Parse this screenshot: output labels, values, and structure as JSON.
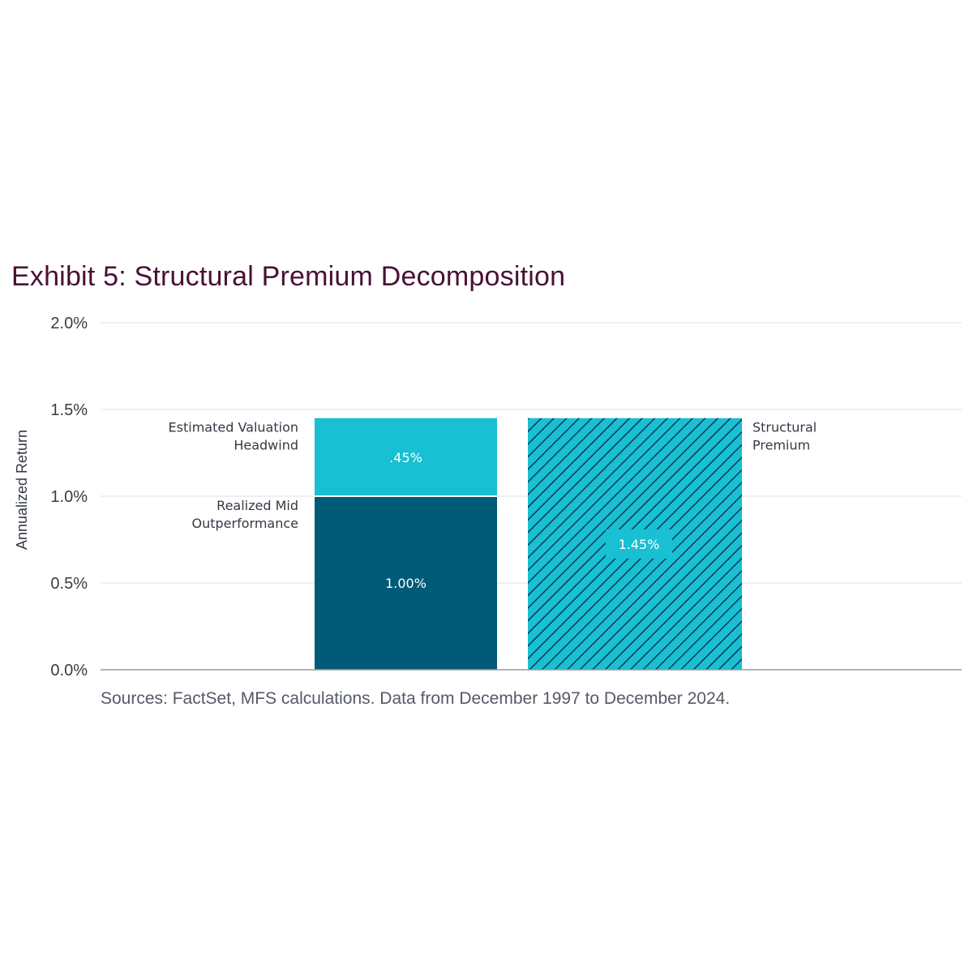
{
  "title": "Exhibit 5: Structural Premium Decomposition",
  "source": "Sources: FactSet, MFS calculations. Data from December 1997 to December 2024.",
  "colors": {
    "title": "#4a1035",
    "realized": "#005a78",
    "headwind": "#19bfd3",
    "premium": "#19bfd3",
    "hatch": "#0b3a4a",
    "grid": "#e2e2e2",
    "axis": "#9a9a9a"
  },
  "chart_data": {
    "type": "bar",
    "ylabel": "Annualized Return",
    "ylim": [
      0,
      2.0
    ],
    "yticks": [
      0,
      0.5,
      1.0,
      1.5,
      2.0
    ],
    "ytick_labels": [
      "0.0%",
      "0.5%",
      "1.0%",
      "1.5%",
      "2.0%"
    ],
    "grid": true,
    "bars": [
      {
        "stacked": true,
        "segments": [
          {
            "name": "Realized Mid Outperformance",
            "value": 1.0,
            "label": "1.00%",
            "color": "#005a78",
            "pattern": "solid"
          },
          {
            "name": "Estimated Valuation Headwind",
            "value": 0.45,
            "label": ".45%",
            "color": "#19bfd3",
            "pattern": "solid"
          }
        ]
      },
      {
        "stacked": false,
        "segments": [
          {
            "name": "Structural Premium",
            "value": 1.45,
            "label": "1.45%",
            "color": "#19bfd3",
            "pattern": "hatch"
          }
        ]
      }
    ],
    "annotations": {
      "realized": [
        "Realized Mid",
        "Outperformance"
      ],
      "headwind": [
        "Estimated Valuation",
        "Headwind"
      ],
      "premium": [
        "Structural",
        "Premium"
      ]
    }
  }
}
